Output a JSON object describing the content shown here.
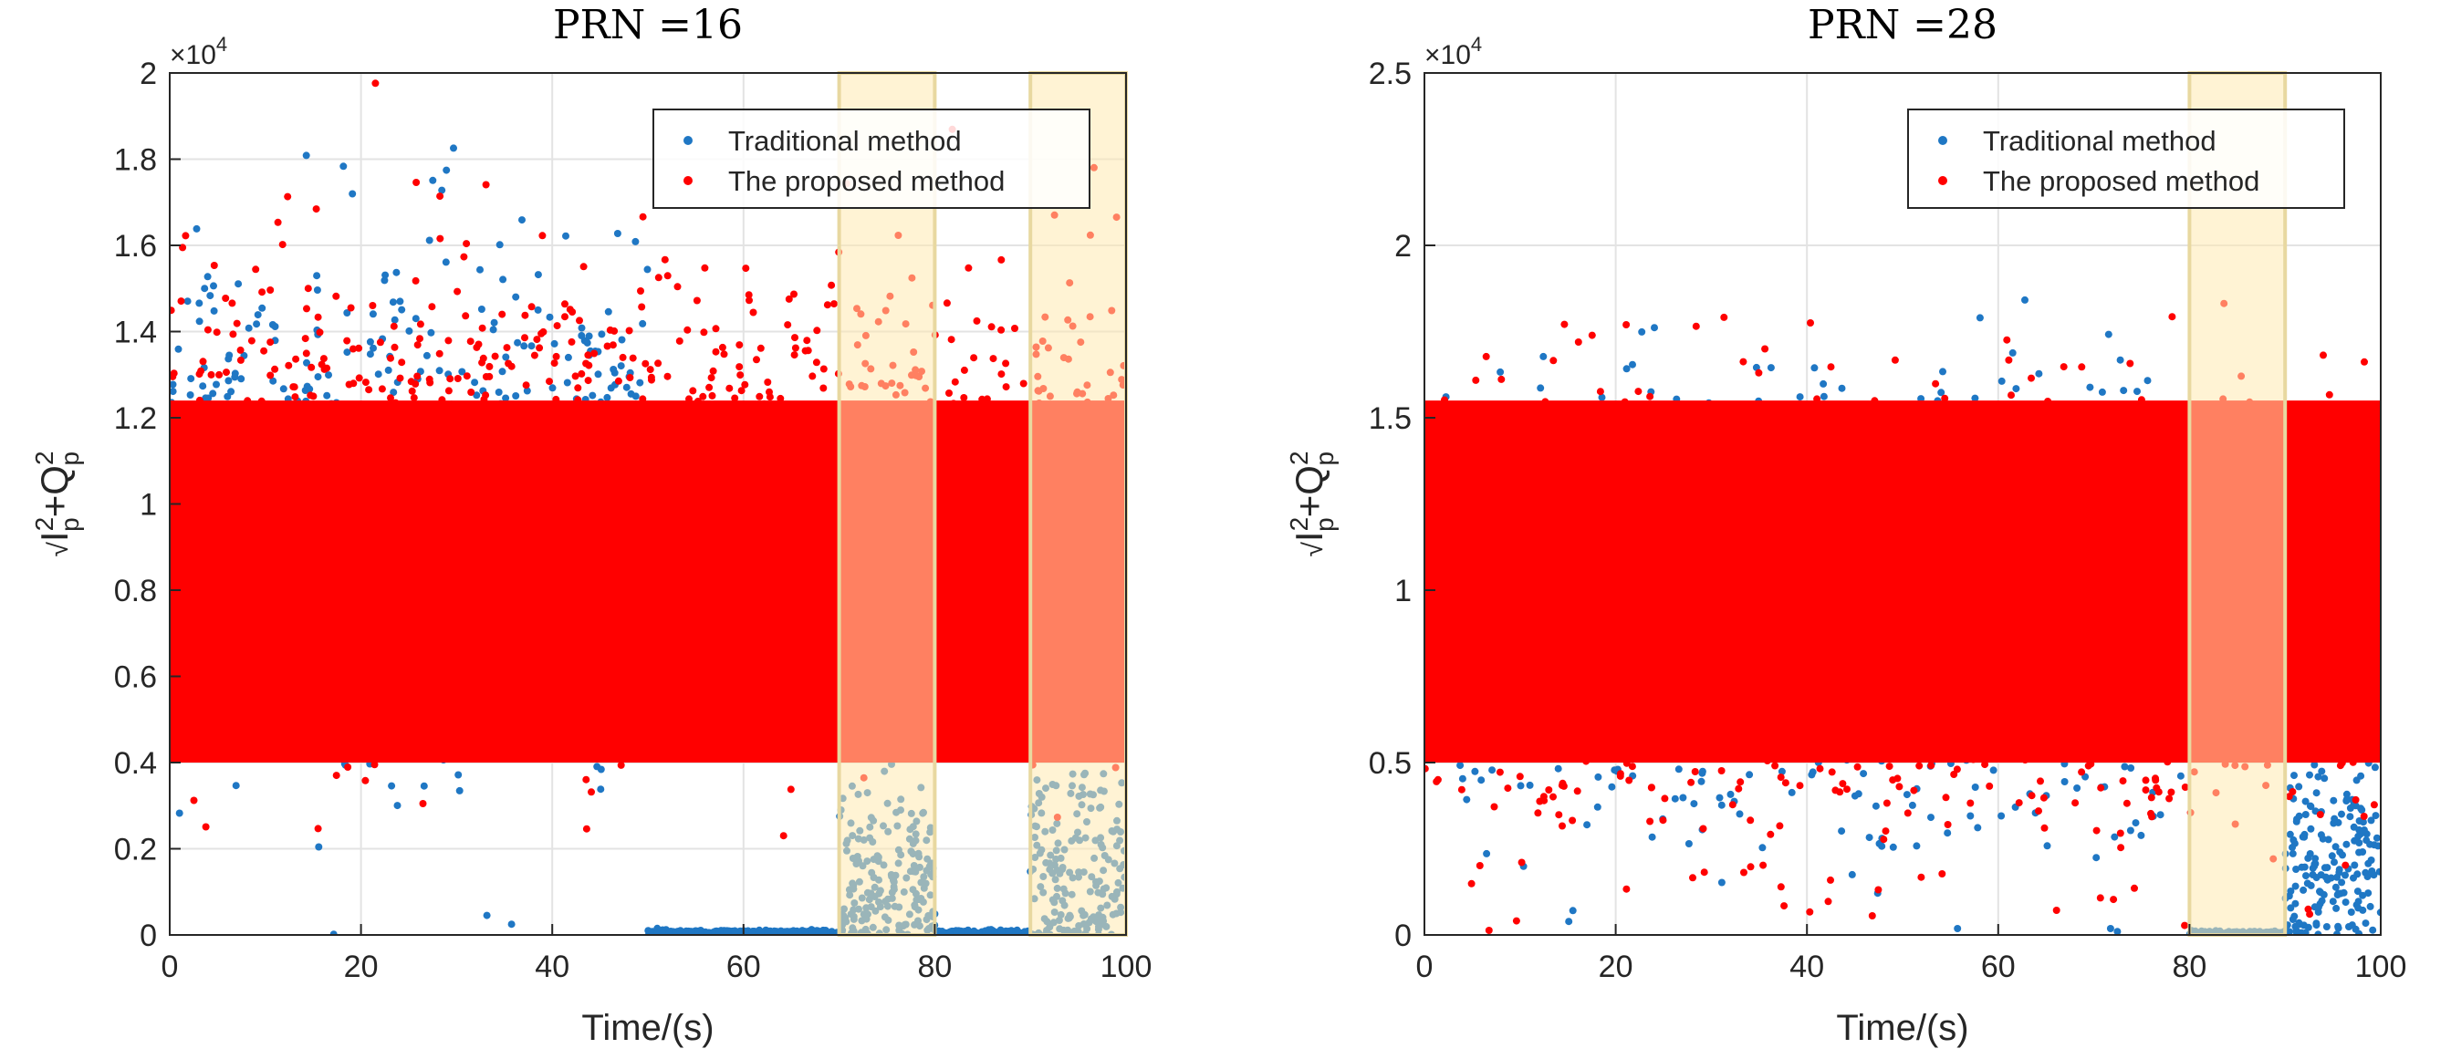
{
  "colors": {
    "traditional": "#1f77c4",
    "proposed": "#ff0000",
    "highlight_fill": "#ffe9b0",
    "highlight_stroke": "#e8d8a0",
    "grid": "#e3e3e3",
    "axis": "#262626"
  },
  "chart_data": [
    {
      "type": "scatter",
      "title": "PRN =16",
      "xlabel": "Time/(s)",
      "ylabel": "√I²p+Q²p",
      "ylabel_parts": {
        "root": "√",
        "i": "I",
        "q": "Q",
        "plus": "+",
        "sup": "2",
        "sub": "p"
      },
      "exponent_label": "×10⁴",
      "exponent_parts": {
        "base": "×10",
        "power": "4"
      },
      "xlim": [
        0,
        100
      ],
      "ylim": [
        0,
        2
      ],
      "y_scale": 10000,
      "xticks": [
        0,
        20,
        40,
        60,
        80,
        100
      ],
      "xtick_labels": [
        "0",
        "20",
        "40",
        "60",
        "80",
        "100"
      ],
      "yticks": [
        0,
        0.2,
        0.4,
        0.6,
        0.8,
        1,
        1.2,
        1.4,
        1.6,
        1.8,
        2
      ],
      "ytick_labels": [
        "0",
        "0.2",
        "0.4",
        "0.6",
        "0.8",
        "1",
        "1.2",
        "1.4",
        "1.6",
        "1.8",
        "2"
      ],
      "grid": true,
      "legend_position": "top-right",
      "legend": [
        "Traditional method",
        "The proposed method"
      ],
      "highlight_regions": [
        [
          70,
          80
        ],
        [
          90,
          100
        ]
      ],
      "series": [
        {
          "name": "Traditional method",
          "color": "#1f77c4",
          "segments": [
            {
              "x_range": [
                0,
                50
              ],
              "center": 1.0,
              "spread": 0.26
            },
            {
              "x_range": [
                50,
                70
              ],
              "center": 0.005,
              "spread": 0.003
            },
            {
              "x_range": [
                70,
                80
              ],
              "center": 0.12,
              "spread": 0.12
            },
            {
              "x_range": [
                80,
                90
              ],
              "center": 0.005,
              "spread": 0.003
            },
            {
              "x_range": [
                90,
                100
              ],
              "center": 0.15,
              "spread": 0.15
            }
          ]
        },
        {
          "name": "The proposed method",
          "color": "#ff0000",
          "segments": [
            {
              "x_range": [
                0,
                50
              ],
              "center": 1.0,
              "spread": 0.26
            },
            {
              "x_range": [
                50,
                100
              ],
              "center": 1.0,
              "spread": 0.24
            }
          ]
        }
      ]
    },
    {
      "type": "scatter",
      "title": "PRN =28",
      "xlabel": "Time/(s)",
      "ylabel": "√I²p+Q²p",
      "ylabel_parts": {
        "root": "√",
        "i": "I",
        "q": "Q",
        "plus": "+",
        "sup": "2",
        "sub": "p"
      },
      "exponent_label": "×10⁴",
      "exponent_parts": {
        "base": "×10",
        "power": "4"
      },
      "xlim": [
        0,
        100
      ],
      "ylim": [
        0,
        2.5
      ],
      "y_scale": 10000,
      "xticks": [
        0,
        20,
        40,
        60,
        80,
        100
      ],
      "xtick_labels": [
        "0",
        "20",
        "40",
        "60",
        "80",
        "100"
      ],
      "yticks": [
        0,
        0.5,
        1,
        1.5,
        2,
        2.5
      ],
      "ytick_labels": [
        "0",
        "0.5",
        "1",
        "1.5",
        "2",
        "2.5"
      ],
      "grid": true,
      "legend_position": "top-right",
      "legend": [
        "Traditional method",
        "The proposed method"
      ],
      "highlight_regions": [
        [
          80,
          90
        ]
      ],
      "series": [
        {
          "name": "Traditional method",
          "color": "#1f77c4",
          "segments": [
            {
              "x_range": [
                0,
                80
              ],
              "center": 0.95,
              "spread": 0.3
            },
            {
              "x_range": [
                80,
                90
              ],
              "center": 0.005,
              "spread": 0.003
            },
            {
              "x_range": [
                90,
                100
              ],
              "center": 0.2,
              "spread": 0.15
            }
          ]
        },
        {
          "name": "The proposed method",
          "color": "#ff0000",
          "segments": [
            {
              "x_range": [
                0,
                100
              ],
              "center": 0.95,
              "spread": 0.3
            }
          ]
        }
      ]
    }
  ]
}
